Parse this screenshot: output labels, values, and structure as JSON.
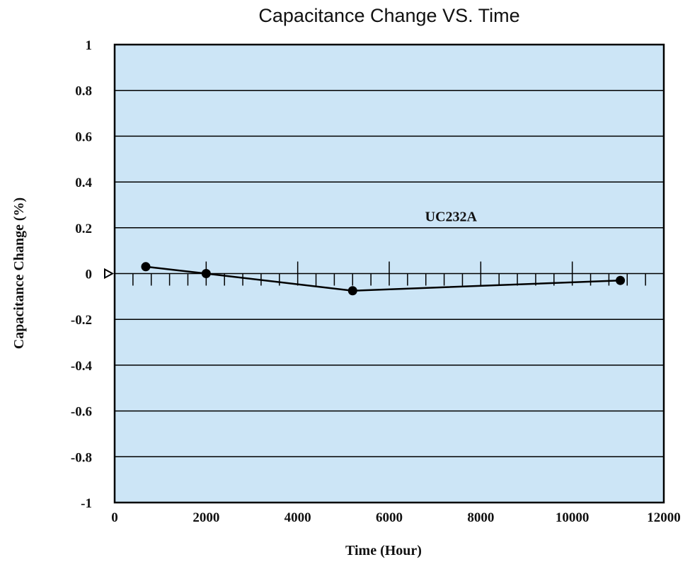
{
  "chart_data": {
    "type": "line",
    "title": "Capacitance Change VS. Time",
    "xlabel": "Time (Hour)",
    "ylabel": "Capacitance Change (%)",
    "xlim": [
      0,
      12000
    ],
    "ylim": [
      -1,
      1
    ],
    "x_ticks": [
      0,
      2000,
      4000,
      6000,
      8000,
      10000,
      12000
    ],
    "x_tick_labels": [
      "0",
      "2000",
      "4000",
      "6000",
      "8000",
      "10000",
      "12000"
    ],
    "y_ticks": [
      1,
      0.8,
      0.6,
      0.4,
      0.2,
      0,
      -0.2,
      -0.4,
      -0.6,
      -0.8,
      -1
    ],
    "y_tick_labels": [
      "1",
      "0.8",
      "0.6",
      "0.4",
      "0.2",
      "0",
      "-0.2",
      "-0.4",
      "-0.6",
      "-0.8",
      "-1"
    ],
    "grid": "horizontal",
    "plot_background": "#cce5f6",
    "line_color": "#000000",
    "series": [
      {
        "x": [
          680,
          2000,
          5200,
          11050
        ],
        "y": [
          0.03,
          0.0,
          -0.075,
          -0.03
        ]
      }
    ],
    "annotations": [
      {
        "text": "UC232A",
        "x": 7350,
        "y": 0.25
      }
    ]
  }
}
